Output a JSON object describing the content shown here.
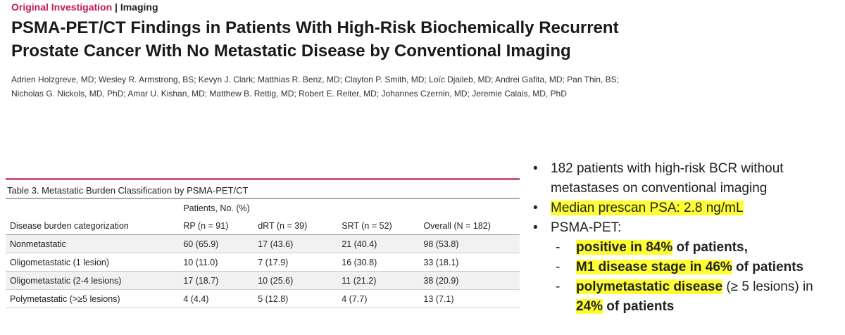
{
  "header": {
    "section": "Original Investigation",
    "category": "Imaging",
    "title": [
      "PSMA-PET/CT Findings in Patients With High-Risk Biochemically Recurrent",
      "Prostate Cancer With No Metastatic Disease by Conventional Imaging"
    ],
    "authors": [
      "Adrien Holzgreve, MD; Wesley R. Armstrong, BS; Kevyn J. Clark; Matthias R. Benz, MD; Clayton P. Smith, MD; Loïc Djaileb, MD; Andrei Gafita, MD; Pan Thin, BS;",
      "Nicholas G. Nickols, MD, PhD; Amar U. Kishan, MD; Matthew B. Rettig, MD; Robert E. Reiter, MD; Johannes Czernin, MD; Jeremie Calais, MD, PhD"
    ]
  },
  "table": {
    "caption": "Table 3. Metastatic Burden Classification by PSMA-PET/CT",
    "group_header": "Patients, No. (%)",
    "columns": [
      "Disease burden categorization",
      "RP (n = 91)",
      "dRT (n = 39)",
      "SRT (n = 52)",
      "Overall (N = 182)"
    ],
    "rows": [
      [
        "Nonmetastatic",
        "60 (65.9)",
        "17 (43.6)",
        "21 (40.4)",
        "98 (53.8)"
      ],
      [
        "Oligometastatic (1 lesion)",
        "10 (11.0)",
        "7 (17.9)",
        "16 (30.8)",
        "33 (18.1)"
      ],
      [
        "Oligometastatic (2-4 lesions)",
        "17 (18.7)",
        "10 (25.6)",
        "11 (21.2)",
        "38 (20.9)"
      ],
      [
        "Polymetastatic (>≥5 lesions)",
        "4 (4.4)",
        "5 (12.8)",
        "4 (7.7)",
        "13 (7.1)"
      ]
    ]
  },
  "bullets": [
    {
      "segments": [
        {
          "text": "182 patients with high-risk BCR without metastases on conventional imaging"
        }
      ]
    },
    {
      "segments": [
        {
          "text": "Median prescan PSA: 2.8 ng/mL",
          "highlight": true
        }
      ]
    },
    {
      "segments": [
        {
          "text": "PSMA-PET:"
        }
      ],
      "sub": [
        {
          "segments": [
            {
              "text": "positive in 84%",
              "bold": true,
              "highlight": true
            },
            {
              "text": " of patients,",
              "bold": true
            }
          ]
        },
        {
          "segments": [
            {
              "text": "M1 disease stage in 46%",
              "bold": true,
              "highlight": true
            },
            {
              "text": " of patients",
              "bold": true
            }
          ]
        },
        {
          "segments": [
            {
              "text": "polymetastatic disease",
              "bold": true,
              "highlight": true
            },
            {
              "text": " (≥ 5 lesions) in "
            },
            {
              "text": "24%",
              "bold": true,
              "highlight": true
            },
            {
              "text": " of patients",
              "bold": true
            }
          ]
        }
      ]
    }
  ]
}
